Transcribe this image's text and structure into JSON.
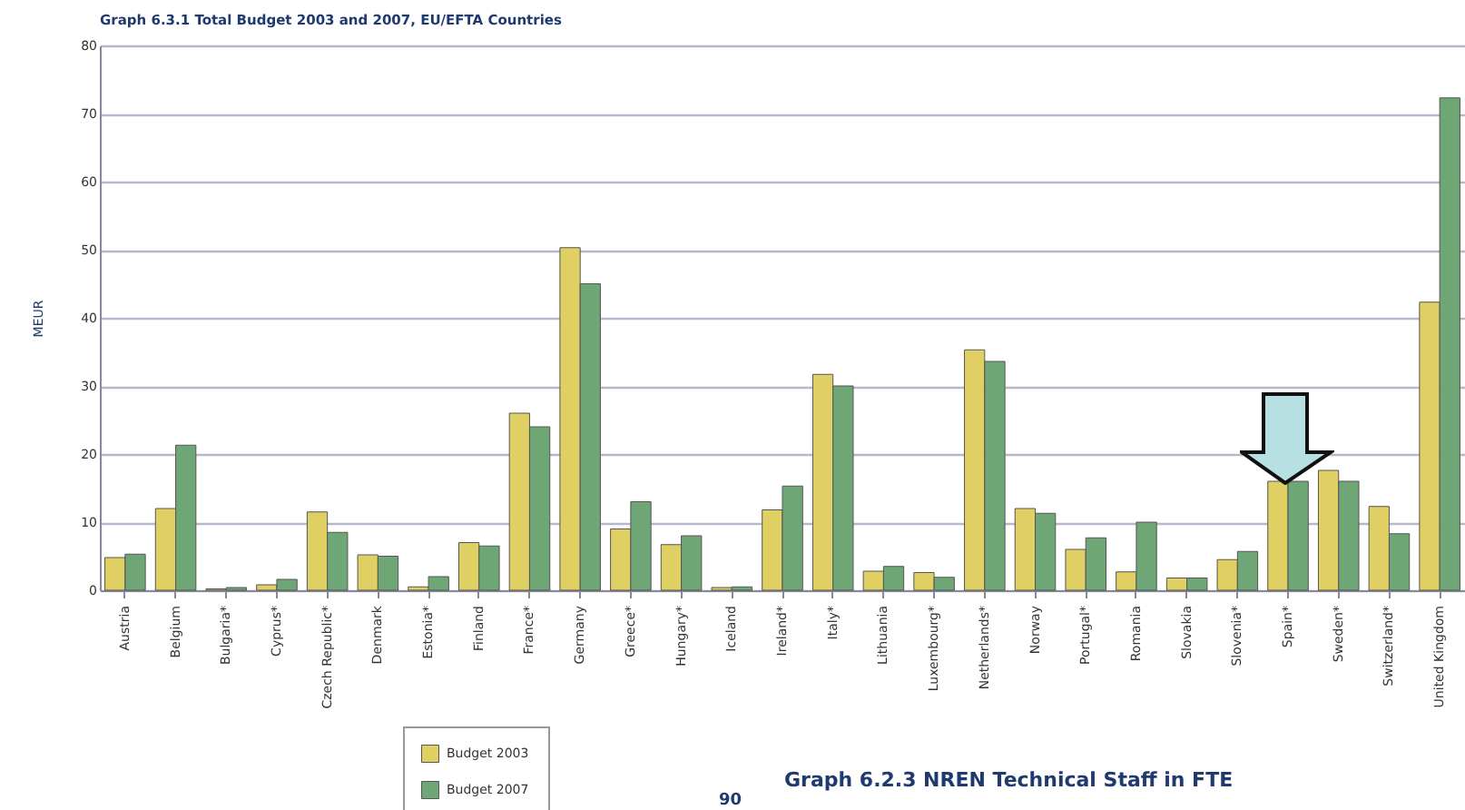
{
  "chart_data": {
    "type": "bar",
    "title": "Graph 6.3.1 Total Budget 2003 and 2007, EU/EFTA Countries",
    "ylabel": "MEUR",
    "categories": [
      "Austria",
      "Belgium",
      "Bulgaria*",
      "Cyprus*",
      "Czech Republic*",
      "Denmark",
      "Estonia*",
      "Finland",
      "France*",
      "Germany",
      "Greece*",
      "Hungary*",
      "Iceland",
      "Ireland*",
      "Italy*",
      "Lithuania",
      "Luxembourg*",
      "Netherlands*",
      "Norway",
      "Portugal*",
      "Romania",
      "Slovakia",
      "Slovenia*",
      "Spain*",
      "Sweden*",
      "Switzerland*",
      "United Kingdom"
    ],
    "series": [
      {
        "name": "Budget 2003",
        "color": "#e0cf62",
        "values": [
          4.8,
          12,
          0.2,
          0.8,
          11.5,
          5.2,
          0.5,
          7,
          26,
          50.3,
          9,
          6.7,
          0.4,
          11.8,
          31.7,
          2.8,
          2.6,
          35.3,
          12,
          6,
          2.7,
          1.8,
          4.5,
          16,
          17.6,
          12.3,
          42.3
        ]
      },
      {
        "name": "Budget 2007",
        "color": "#6fa676",
        "values": [
          5.3,
          21.3,
          0.4,
          1.6,
          8.5,
          5,
          2,
          6.5,
          24,
          45,
          13,
          8,
          0.5,
          15.3,
          30,
          3.5,
          1.9,
          33.6,
          11.3,
          7.7,
          10,
          1.8,
          5.7,
          16,
          16,
          8.3,
          72.3
        ]
      }
    ],
    "ylim": [
      0,
      80
    ],
    "yticks": [
      0,
      10,
      20,
      30,
      40,
      50,
      60,
      70,
      80
    ],
    "grid": true,
    "legend": "bottom",
    "annotations": [
      "Graph 6.2.3 NREN Technical Staff in FTE",
      "90"
    ]
  }
}
